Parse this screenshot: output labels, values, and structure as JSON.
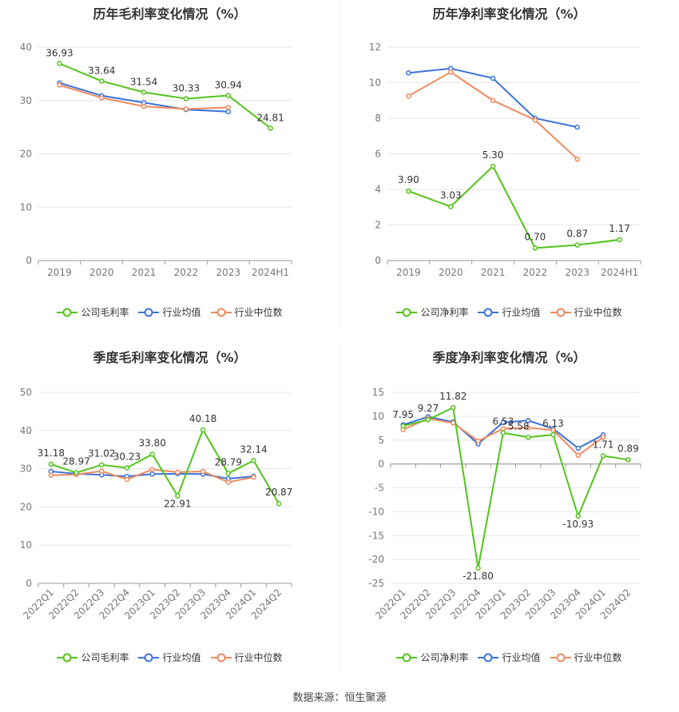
{
  "source_text": "数据来源：恒生聚源",
  "colors": {
    "company": "#52c41a",
    "industry_avg": "#3b73db",
    "industry_median": "#f08a5d"
  },
  "chart_data": [
    {
      "type": "line",
      "title": "历年毛利率变化情况（%）",
      "categories": [
        "2019",
        "2020",
        "2021",
        "2022",
        "2023",
        "2024H1"
      ],
      "ylim": [
        0,
        40
      ],
      "yticks": [
        0,
        10,
        20,
        30,
        40
      ],
      "grid": true,
      "legend": "bottom",
      "series": [
        {
          "name": "公司毛利率",
          "key": "company",
          "values": [
            36.93,
            33.64,
            31.54,
            30.33,
            30.94,
            24.81
          ],
          "labels": [
            "36.93",
            "33.64",
            "31.54",
            "30.33",
            "30.94",
            "24.81"
          ]
        },
        {
          "name": "行业均值",
          "key": "industry_avg",
          "values": [
            33.3,
            30.9,
            29.6,
            28.3,
            27.9,
            null
          ]
        },
        {
          "name": "行业中位数",
          "key": "industry_median",
          "values": [
            32.9,
            30.5,
            28.9,
            28.4,
            28.7,
            null
          ]
        }
      ]
    },
    {
      "type": "line",
      "title": "历年净利率变化情况（%）",
      "categories": [
        "2019",
        "2020",
        "2021",
        "2022",
        "2023",
        "2024H1"
      ],
      "ylim": [
        0,
        12
      ],
      "yticks": [
        0,
        2,
        4,
        6,
        8,
        10,
        12
      ],
      "grid": true,
      "legend": "bottom",
      "series": [
        {
          "name": "公司净利率",
          "key": "company",
          "values": [
            3.9,
            3.03,
            5.3,
            0.7,
            0.87,
            1.17
          ],
          "labels": [
            "3.90",
            "3.03",
            "5.30",
            "0.70",
            "0.87",
            "1.17"
          ]
        },
        {
          "name": "行业均值",
          "key": "industry_avg",
          "values": [
            10.55,
            10.8,
            10.25,
            8.0,
            7.5,
            null
          ]
        },
        {
          "name": "行业中位数",
          "key": "industry_median",
          "values": [
            9.25,
            10.6,
            9.0,
            7.9,
            5.7,
            null
          ]
        }
      ]
    },
    {
      "type": "line",
      "title": "季度毛利率变化情况（%）",
      "categories": [
        "2022Q1",
        "2022Q2",
        "2022Q3",
        "2022Q4",
        "2023Q1",
        "2023Q2",
        "2023Q3",
        "2023Q4",
        "2024Q1",
        "2024Q2"
      ],
      "ylim": [
        0,
        50
      ],
      "yticks": [
        0,
        10,
        20,
        30,
        40,
        50
      ],
      "grid": true,
      "legend": "bottom",
      "series": [
        {
          "name": "公司毛利率",
          "key": "company",
          "values": [
            31.18,
            28.97,
            31.02,
            30.23,
            33.8,
            22.91,
            40.18,
            28.79,
            32.14,
            20.87
          ],
          "labels": [
            "31.18",
            "28.97",
            "31.02",
            "30.23",
            "33.80",
            "22.91",
            "40.18",
            "28.79",
            "32.14",
            "20.87"
          ]
        },
        {
          "name": "行业均值",
          "key": "industry_avg",
          "values": [
            29.3,
            28.7,
            28.4,
            28.0,
            28.6,
            28.7,
            28.6,
            27.4,
            28.0,
            null
          ]
        },
        {
          "name": "行业中位数",
          "key": "industry_median",
          "values": [
            28.3,
            28.5,
            29.4,
            27.2,
            29.8,
            29.1,
            29.3,
            26.5,
            27.8,
            null
          ]
        }
      ]
    },
    {
      "type": "line",
      "title": "季度净利率变化情况（%）",
      "categories": [
        "2022Q1",
        "2022Q2",
        "2022Q3",
        "2022Q4",
        "2023Q1",
        "2023Q2",
        "2023Q3",
        "2023Q4",
        "2024Q1",
        "2024Q2"
      ],
      "ylim": [
        -25,
        15
      ],
      "yticks": [
        -25,
        -20,
        -15,
        -10,
        -5,
        0,
        5,
        10,
        15
      ],
      "grid": true,
      "legend": "bottom",
      "series": [
        {
          "name": "公司净利率",
          "key": "company",
          "values": [
            7.95,
            9.27,
            11.82,
            -21.8,
            6.53,
            5.58,
            6.13,
            -10.93,
            1.71,
            0.89
          ],
          "labels": [
            "7.95",
            "9.27",
            "11.82",
            "-21.80",
            "6.53",
            "5.58",
            "6.13",
            "-10.93",
            "1.71",
            "0.89"
          ]
        },
        {
          "name": "行业均值",
          "key": "industry_avg",
          "values": [
            8.2,
            9.9,
            8.8,
            4.2,
            8.7,
            9.1,
            7.4,
            3.3,
            6.1,
            null
          ]
        },
        {
          "name": "行业中位数",
          "key": "industry_median",
          "values": [
            7.2,
            9.5,
            8.6,
            4.8,
            7.4,
            7.6,
            7.1,
            1.8,
            5.6,
            null
          ]
        }
      ]
    }
  ]
}
